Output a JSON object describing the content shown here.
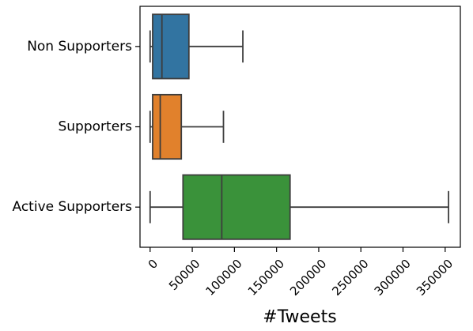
{
  "chart_data": {
    "type": "boxplot",
    "orientation": "horizontal",
    "xlabel": "#Tweets",
    "ylabel": "",
    "xlim": [
      -12000,
      368000
    ],
    "xticks": [
      0,
      50000,
      100000,
      150000,
      200000,
      250000,
      300000,
      350000
    ],
    "xtick_labels": [
      "0",
      "50000",
      "100000",
      "150000",
      "200000",
      "250000",
      "300000",
      "350000"
    ],
    "grid": false,
    "categories": [
      "Non Supporters",
      "Supporters",
      "Active Supporters"
    ],
    "boxes": [
      {
        "category": "Non Supporters",
        "color": "#3274a1",
        "whisker_low": 0,
        "q1": 3000,
        "median": 14000,
        "q3": 46000,
        "whisker_high": 110000
      },
      {
        "category": "Supporters",
        "color": "#e1812c",
        "whisker_low": 0,
        "q1": 3000,
        "median": 12000,
        "q3": 37000,
        "whisker_high": 87000
      },
      {
        "category": "Active Supporters",
        "color": "#3a923a",
        "whisker_low": 0,
        "q1": 39000,
        "median": 85000,
        "q3": 166000,
        "whisker_high": 354000
      }
    ]
  }
}
